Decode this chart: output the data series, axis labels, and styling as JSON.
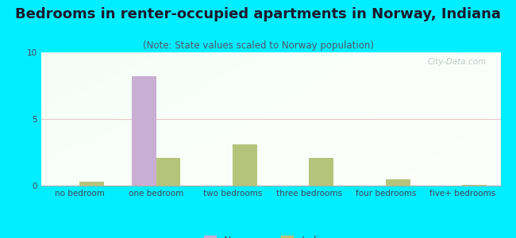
{
  "title": "Bedrooms in renter-occupied apartments in Norway, Indiana",
  "subtitle": "(Note: State values scaled to Norway population)",
  "categories": [
    "no bedroom",
    "one bedroom",
    "two bedrooms",
    "three bedrooms",
    "four bedrooms",
    "five+ bedrooms"
  ],
  "norway_values": [
    0,
    8.2,
    0,
    0,
    0,
    0
  ],
  "indiana_values": [
    0.32,
    2.1,
    3.1,
    2.1,
    0.45,
    0.07
  ],
  "norway_color": "#c9aed4",
  "indiana_color": "#b5c47a",
  "background_outer": "#00eeff",
  "ylim": [
    0,
    10
  ],
  "yticks": [
    0,
    5,
    10
  ],
  "grid_color": "#e8c8c8",
  "title_fontsize": 13,
  "subtitle_fontsize": 8.5,
  "tick_fontsize": 7.5,
  "legend_fontsize": 9,
  "watermark": "City-Data.com",
  "title_color": "#1a1a2e",
  "subtitle_color": "#555566",
  "tick_color": "#444455"
}
